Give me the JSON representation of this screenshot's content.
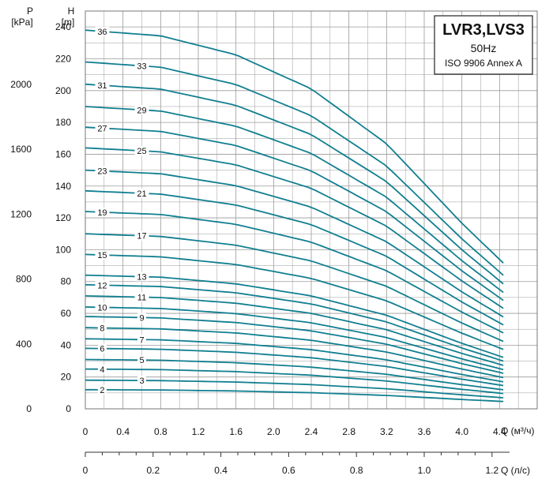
{
  "chart_data": {
    "type": "line",
    "title": "LVR3,LVS3",
    "subtitle": "50Hz",
    "standard": "ISO 9906 Annex A",
    "left_axis": {
      "label": "P",
      "unit": "[kPa]",
      "ticks": [
        "0",
        "400",
        "800",
        "1200",
        "1600",
        "2000"
      ],
      "tick_values": [
        0,
        400,
        800,
        1200,
        1600,
        2000
      ]
    },
    "y_axis": {
      "label": "H",
      "unit": "[m]",
      "ylim": [
        0,
        250
      ],
      "ticks": [
        "0",
        "20",
        "40",
        "60",
        "80",
        "100",
        "120",
        "140",
        "160",
        "180",
        "200",
        "220",
        "240"
      ]
    },
    "x_axis": {
      "label": "Q (м³/ч)",
      "xlim": [
        0,
        4.8
      ],
      "ticks": [
        "0",
        "0.4",
        "0.8",
        "1.2",
        "1.6",
        "2.0",
        "2.4",
        "2.8",
        "3.2",
        "3.6",
        "4.0",
        "4.4"
      ]
    },
    "x2_axis": {
      "label": "Q (л/с)",
      "ticks": [
        "0",
        "0.2",
        "0.4",
        "0.6",
        "0.8",
        "1.0",
        "1.2"
      ],
      "tick_values": [
        0,
        0.2,
        0.4,
        0.6,
        0.8,
        1.0,
        1.2
      ]
    },
    "colors": {
      "curve": "#117f90",
      "grid": "#9a9a9a",
      "text": "#111111"
    },
    "curve_shape": {
      "x": [
        0,
        0.8,
        1.6,
        2.4,
        3.2,
        4.0,
        4.44
      ],
      "ratio": [
        1.0,
        0.985,
        0.935,
        0.845,
        0.7,
        0.49,
        0.385
      ]
    },
    "series": [
      {
        "name": "2",
        "h0": 12
      },
      {
        "name": "3",
        "h0": 18
      },
      {
        "name": "4",
        "h0": 25
      },
      {
        "name": "5",
        "h0": 31
      },
      {
        "name": "6",
        "h0": 38
      },
      {
        "name": "7",
        "h0": 44
      },
      {
        "name": "8",
        "h0": 51
      },
      {
        "name": "9",
        "h0": 58
      },
      {
        "name": "10",
        "h0": 64
      },
      {
        "name": "11",
        "h0": 71
      },
      {
        "name": "12",
        "h0": 78
      },
      {
        "name": "13",
        "h0": 84
      },
      {
        "name": "15",
        "h0": 97
      },
      {
        "name": "17",
        "h0": 110
      },
      {
        "name": "19",
        "h0": 124
      },
      {
        "name": "21",
        "h0": 137
      },
      {
        "name": "23",
        "h0": 150
      },
      {
        "name": "25",
        "h0": 164
      },
      {
        "name": "27",
        "h0": 177
      },
      {
        "name": "29",
        "h0": 190
      },
      {
        "name": "31",
        "h0": 204
      },
      {
        "name": "33",
        "h0": 218
      },
      {
        "name": "36",
        "h0": 238
      }
    ]
  }
}
